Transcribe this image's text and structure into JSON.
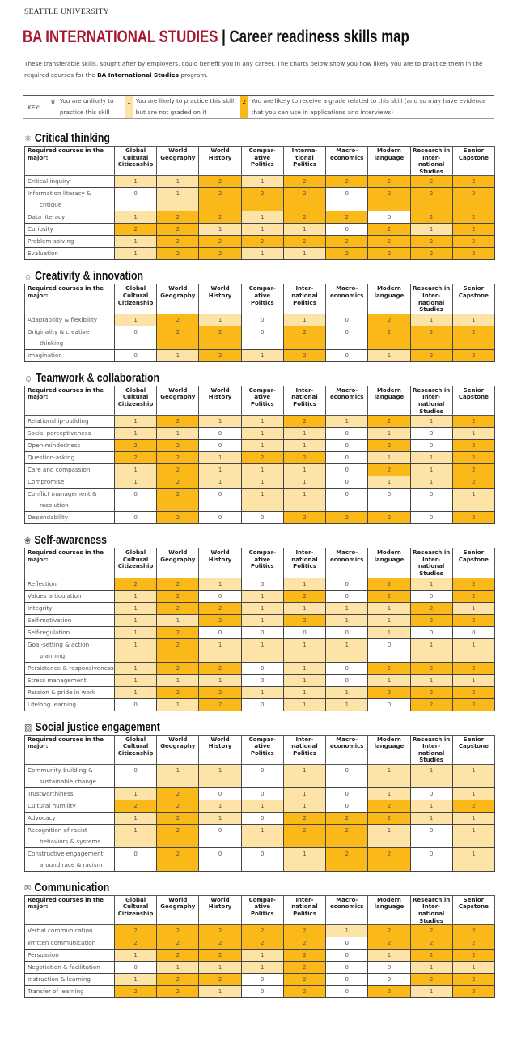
{
  "header": {
    "university": "SEATTLE UNIVERSITY",
    "program": "BA INTERNATIONAL STUDIES",
    "separator": " | ",
    "subtitle": "Career readiness skills map"
  },
  "intro": {
    "text_before": "These transferable skills, sought after by employers, could benefit you in any career. The charts below show you how likely you are to practice them in the required courses for the ",
    "program_bold": "BA International Studies",
    "text_after": " program."
  },
  "key": {
    "label": "KEY:",
    "levels": [
      {
        "value": "0",
        "text": "You are unlikely to practice this skill",
        "color": "#ffffff"
      },
      {
        "value": "1",
        "text": "You are likely to practice this skill, but are not graded on it",
        "color": "#fde3a5"
      },
      {
        "value": "2",
        "text": "You are likely to receive a grade related to this skill (and so may have evidence that you can use in applications and interviews)",
        "color": "#fbb919"
      }
    ]
  },
  "colors": {
    "title_red": "#a6192e",
    "level1": "#fde3a5",
    "level2": "#fbb919"
  },
  "sections": [
    {
      "title": "Critical thinking",
      "icon": "network-icon",
      "corner": "Required courses in the major:",
      "courses": [
        "Global Cultural Citizenship",
        "World Geography",
        "World History",
        "Compar-ative Politics",
        "Interna-tional Politics",
        "Macro-economics",
        "Modern language",
        "Research in Inter-national Studies",
        "Senior Capstone"
      ],
      "rows": [
        {
          "skill": "Critical inquiry",
          "values": [
            1,
            1,
            2,
            1,
            2,
            2,
            2,
            2,
            2
          ]
        },
        {
          "skill": "Information literacy & critique",
          "values": [
            0,
            1,
            2,
            2,
            2,
            0,
            2,
            2,
            2
          ]
        },
        {
          "skill": "Data literacy",
          "values": [
            1,
            2,
            2,
            1,
            2,
            2,
            0,
            2,
            2
          ]
        },
        {
          "skill": "Curiosity",
          "values": [
            2,
            2,
            1,
            1,
            1,
            0,
            2,
            1,
            2
          ]
        },
        {
          "skill": "Problem-solving",
          "values": [
            1,
            2,
            2,
            2,
            2,
            2,
            2,
            2,
            2
          ]
        },
        {
          "skill": "Evaluation",
          "values": [
            1,
            2,
            2,
            1,
            1,
            2,
            2,
            2,
            2
          ]
        }
      ]
    },
    {
      "title": "Creativity & innovation",
      "icon": "lightbulb-icon",
      "corner": "Required courses in the major:",
      "courses": [
        "Global Cultural Citizenship",
        "World Geography",
        "World History",
        "Compar-ative Politics",
        "Inter-national Politics",
        "Macro-economics",
        "Modern language",
        "Research in Inter-national Studies",
        "Senior Capstone"
      ],
      "rows": [
        {
          "skill": "Adaptability & flexibility",
          "values": [
            1,
            2,
            1,
            0,
            1,
            0,
            2,
            1,
            1
          ]
        },
        {
          "skill": "Originality & creative thinking",
          "values": [
            0,
            2,
            2,
            0,
            2,
            0,
            2,
            2,
            2
          ]
        },
        {
          "skill": "Imagination",
          "values": [
            0,
            1,
            2,
            1,
            2,
            0,
            1,
            2,
            2
          ]
        }
      ]
    },
    {
      "title": "Teamwork & collaboration",
      "icon": "people-icon",
      "corner": "Required courses in the major:",
      "courses": [
        "Global Cultural Citizenship",
        "World Geography",
        "World History",
        "Compar-ative Politics",
        "Inter-national Politics",
        "Macro-economics",
        "Modern language",
        "Research in Inter-national Studies",
        "Senior Capstone"
      ],
      "rows": [
        {
          "skill": "Relationship-building",
          "values": [
            1,
            2,
            1,
            1,
            2,
            1,
            2,
            1,
            2
          ]
        },
        {
          "skill": "Social perceptiveness",
          "values": [
            1,
            1,
            0,
            1,
            1,
            0,
            1,
            0,
            1
          ]
        },
        {
          "skill": "Open-mindedness",
          "values": [
            2,
            2,
            0,
            1,
            1,
            0,
            2,
            0,
            2
          ]
        },
        {
          "skill": "Question-asking",
          "values": [
            2,
            2,
            1,
            2,
            2,
            0,
            1,
            1,
            2
          ]
        },
        {
          "skill": "Care and compassion",
          "values": [
            1,
            2,
            1,
            1,
            1,
            0,
            2,
            1,
            2
          ]
        },
        {
          "skill": "Compromise",
          "values": [
            1,
            2,
            1,
            1,
            1,
            0,
            1,
            1,
            2
          ]
        },
        {
          "skill": "Conflict management & resolution",
          "values": [
            0,
            2,
            0,
            1,
            1,
            0,
            0,
            0,
            1
          ]
        },
        {
          "skill": "Dependability",
          "values": [
            0,
            2,
            0,
            0,
            2,
            2,
            2,
            0,
            2
          ]
        }
      ]
    },
    {
      "title": "Self-awareness",
      "icon": "lotus-icon",
      "corner": "Required courses in the major:",
      "courses": [
        "Global Cultural Citizenship",
        "World Geography",
        "World History",
        "Compar-ative Politics",
        "Inter-national Politics",
        "Macro-economics",
        "Modern language",
        "Research in Inter-national Studies",
        "Senior Capstone"
      ],
      "rows": [
        {
          "skill": "Reflection",
          "values": [
            2,
            2,
            1,
            0,
            1,
            0,
            2,
            1,
            2
          ]
        },
        {
          "skill": "Values articulation",
          "values": [
            1,
            2,
            0,
            1,
            2,
            0,
            2,
            0,
            2
          ]
        },
        {
          "skill": "Integrity",
          "values": [
            1,
            2,
            2,
            1,
            1,
            1,
            1,
            2,
            1
          ]
        },
        {
          "skill": "Self-motivation",
          "values": [
            1,
            1,
            2,
            1,
            2,
            1,
            1,
            2,
            2
          ]
        },
        {
          "skill": "Self-regulation",
          "values": [
            1,
            2,
            0,
            0,
            0,
            0,
            1,
            0,
            0
          ]
        },
        {
          "skill": "Goal-setting & action planning",
          "values": [
            1,
            2,
            1,
            1,
            1,
            1,
            0,
            1,
            1
          ]
        },
        {
          "skill": "Persistence & responsiveness",
          "values": [
            1,
            2,
            2,
            0,
            1,
            0,
            2,
            2,
            2
          ]
        },
        {
          "skill": "Stress management",
          "values": [
            1,
            1,
            1,
            0,
            1,
            0,
            1,
            1,
            1
          ]
        },
        {
          "skill": "Passion & pride in work",
          "values": [
            1,
            2,
            2,
            1,
            1,
            1,
            2,
            2,
            2
          ]
        },
        {
          "skill": "Lifelong learning",
          "values": [
            0,
            1,
            2,
            0,
            1,
            1,
            0,
            2,
            2
          ]
        }
      ]
    },
    {
      "title": "Social justice engagement",
      "icon": "globe-icon",
      "corner": "Required courses in the major:",
      "courses": [
        "Global Cultural Citizenship",
        "World Geography",
        "World History",
        "Compar-ative Politics",
        "Inter-national Politics",
        "Macro-economics",
        "Modern language",
        "Research in Inter-national Studies",
        "Senior Capstone"
      ],
      "rows": [
        {
          "skill": "Community-building & sustainable change",
          "values": [
            0,
            1,
            1,
            0,
            1,
            0,
            1,
            1,
            1
          ]
        },
        {
          "skill": "Trustworthiness",
          "values": [
            1,
            2,
            0,
            0,
            1,
            0,
            1,
            0,
            1
          ]
        },
        {
          "skill": "Cultural humility",
          "values": [
            2,
            2,
            1,
            1,
            1,
            0,
            2,
            1,
            2
          ]
        },
        {
          "skill": "Advocacy",
          "values": [
            1,
            2,
            1,
            0,
            2,
            2,
            2,
            1,
            1
          ]
        },
        {
          "skill": "Recognition of racist behaviors & systems",
          "values": [
            1,
            2,
            0,
            1,
            2,
            2,
            1,
            0,
            1
          ]
        },
        {
          "skill": "Constructive engagement around race & racism",
          "values": [
            0,
            2,
            0,
            0,
            1,
            2,
            2,
            0,
            1
          ]
        }
      ]
    },
    {
      "title": "Communication",
      "icon": "speech-bubbles-icon",
      "corner": "Required courses in the major:",
      "courses": [
        "Global Cultural Citizenship",
        "World Geography",
        "World History",
        "Compar-ative Politics",
        "Inter-national Politics",
        "Macro-economics",
        "Modern language",
        "Research in Inter-national Studies",
        "Senior Capstone"
      ],
      "rows": [
        {
          "skill": "Verbal communication",
          "values": [
            2,
            2,
            2,
            2,
            2,
            1,
            2,
            2,
            2
          ]
        },
        {
          "skill": "Written communication",
          "values": [
            2,
            2,
            2,
            2,
            2,
            0,
            2,
            2,
            2
          ]
        },
        {
          "skill": "Persuasion",
          "values": [
            1,
            2,
            2,
            1,
            2,
            0,
            1,
            2,
            2
          ]
        },
        {
          "skill": "Negotiation & facilitation",
          "values": [
            0,
            1,
            1,
            1,
            2,
            0,
            0,
            1,
            1
          ]
        },
        {
          "skill": "Instruction & learning",
          "values": [
            1,
            2,
            2,
            0,
            2,
            0,
            0,
            2,
            2
          ]
        },
        {
          "skill": "Transfer of learning",
          "values": [
            2,
            2,
            1,
            0,
            2,
            0,
            2,
            1,
            2
          ]
        }
      ]
    }
  ]
}
